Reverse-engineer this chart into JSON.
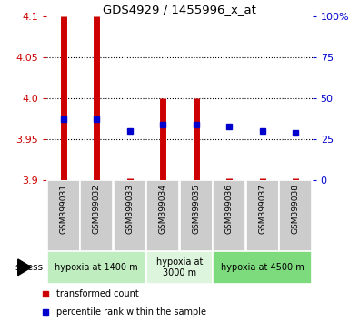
{
  "title": "GDS4929 / 1455996_x_at",
  "samples": [
    "GSM399031",
    "GSM399032",
    "GSM399033",
    "GSM399034",
    "GSM399035",
    "GSM399036",
    "GSM399037",
    "GSM399038"
  ],
  "red_bottom": [
    3.9,
    3.9,
    3.9,
    3.9,
    3.9,
    3.9,
    3.9,
    3.9
  ],
  "red_top": [
    4.1,
    4.1,
    3.902,
    4.0,
    4.0,
    3.902,
    3.902,
    3.902
  ],
  "blue_pct": [
    37,
    37,
    30,
    34,
    34,
    33,
    30,
    29
  ],
  "ylim_left": [
    3.9,
    4.1
  ],
  "ylim_right": [
    0,
    100
  ],
  "yticks_left": [
    3.9,
    3.95,
    4.0,
    4.05,
    4.1
  ],
  "yticks_right": [
    0,
    25,
    50,
    75,
    100
  ],
  "groups": [
    {
      "label": "hypoxia at 1400 m",
      "start": 0,
      "end": 2,
      "color": "#c0edc0"
    },
    {
      "label": "hypoxia at\n3000 m",
      "start": 3,
      "end": 4,
      "color": "#ddf5dd"
    },
    {
      "label": "hypoxia at 4500 m",
      "start": 5,
      "end": 7,
      "color": "#7dda7d"
    }
  ],
  "stress_label": "stress",
  "legend_red": "transformed count",
  "legend_blue": "percentile rank within the sample",
  "bar_color": "#cc0000",
  "dot_color": "#0000cc",
  "tick_color_left": "#cc0000",
  "tick_color_right": "#0000cc",
  "bg_color": "#ffffff",
  "sample_box_color": "#cccccc"
}
